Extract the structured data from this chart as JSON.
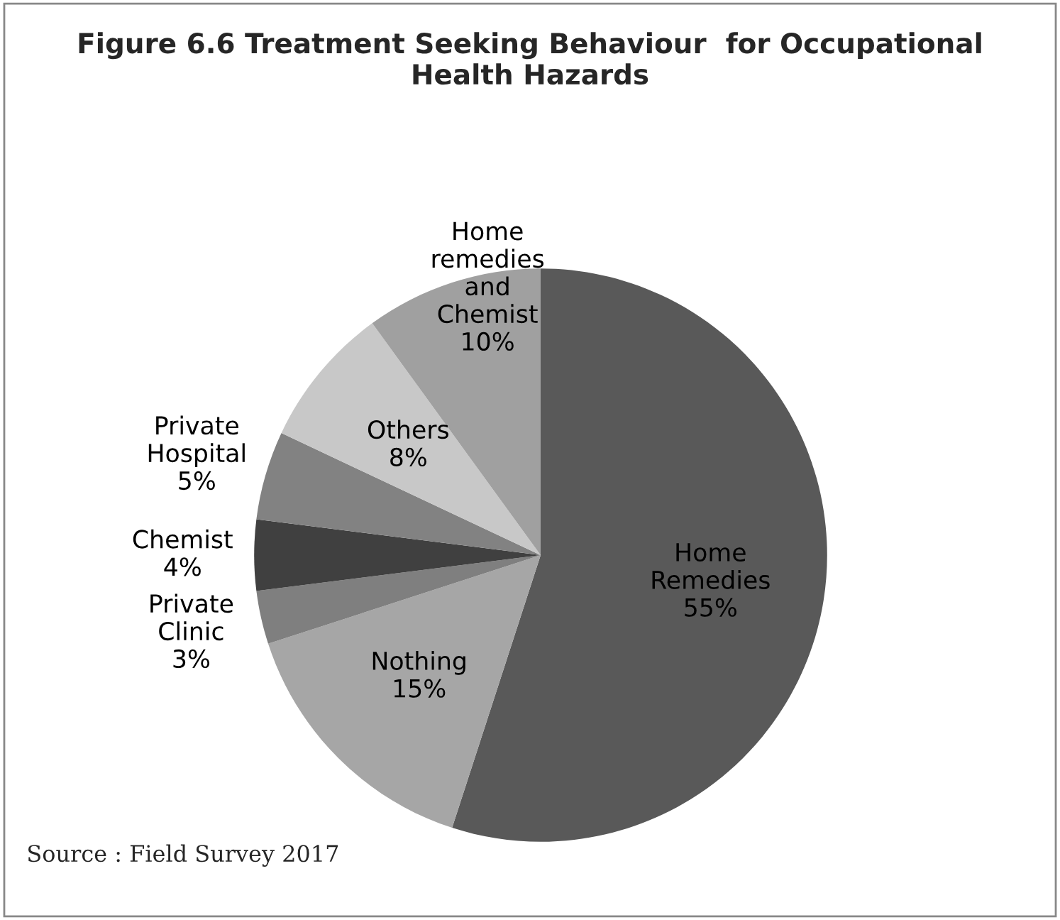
{
  "chart_data": {
    "type": "pie",
    "title": "Figure 6.6 Treatment Seeking Behaviour  for Occupational Health Hazards",
    "categories": [
      "Home Remedies",
      "Nothing",
      "Private Clinic",
      "Chemist",
      "Private Hospital",
      "Others",
      "Home remedies and Chemist"
    ],
    "values": [
      55,
      15,
      3,
      4,
      5,
      8,
      10
    ],
    "value_labels": [
      "55%",
      "15%",
      "3%",
      "4%",
      "5%",
      "8%",
      "10%"
    ],
    "colors": [
      "#595959",
      "#a6a6a6",
      "#7f7f7f",
      "#404040",
      "#828282",
      "#c8c8c8",
      "#a0a0a0"
    ],
    "annotations": [
      "Source : Field Survey 2017"
    ]
  }
}
